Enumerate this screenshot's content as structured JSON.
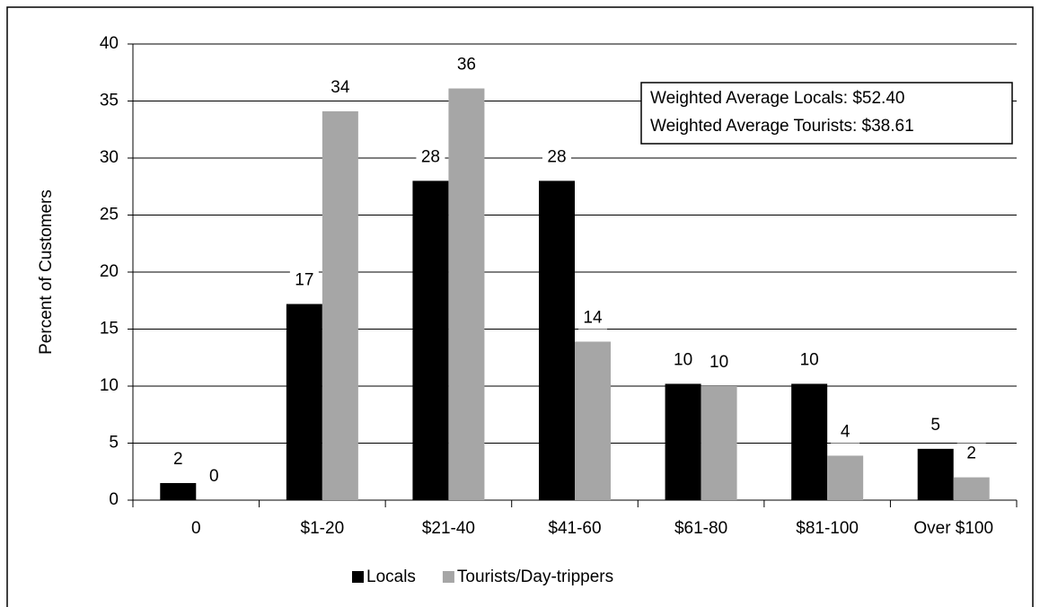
{
  "chart_data": {
    "type": "bar",
    "y_label": "Percent of Customers",
    "categories": [
      "0",
      "$1-20",
      "$21-40",
      "$41-60",
      "$61-80",
      "$81-100",
      "Over $100"
    ],
    "series": [
      {
        "name": "Locals",
        "color": "#000000",
        "values": [
          1.5,
          17.2,
          28,
          28,
          10.2,
          10.2,
          4.5
        ],
        "value_labels": [
          "2",
          "17",
          "28",
          "28",
          "10",
          "10",
          "5"
        ]
      },
      {
        "name": "Tourists/Day-trippers",
        "color": "#a6a6a6",
        "values": [
          0,
          34.1,
          36.1,
          13.9,
          10,
          3.9,
          2
        ],
        "value_labels": [
          "0",
          "34",
          "36",
          "14",
          "10",
          "4",
          "2"
        ]
      }
    ],
    "annotations": [
      "Weighted Average Locals: $52.40",
      "Weighted Average Tourists: $38.61"
    ],
    "ylim": [
      0,
      40
    ],
    "yticks": [
      0,
      5,
      10,
      15,
      20,
      25,
      30,
      35,
      40
    ],
    "grid": true,
    "legend": "bottom"
  }
}
